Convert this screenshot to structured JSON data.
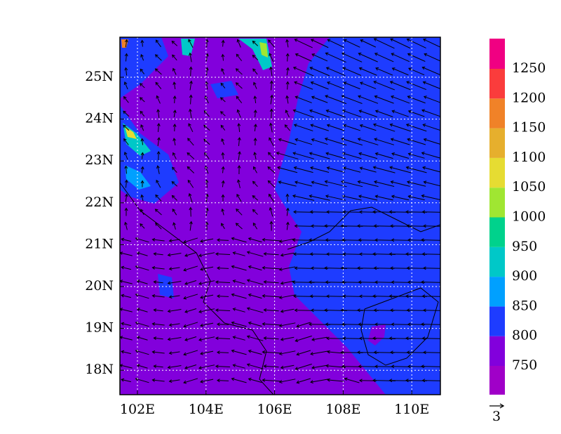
{
  "map": {
    "x_ticks": [
      "102E",
      "104E",
      "106E",
      "108E",
      "110E"
    ],
    "y_ticks": [
      "25N",
      "24N",
      "23N",
      "22N",
      "21N",
      "20N",
      "19N",
      "18N"
    ],
    "colorbar": {
      "levels": [
        750,
        800,
        850,
        900,
        950,
        1000,
        1050,
        1100,
        1150,
        1200,
        1250
      ],
      "colors": [
        "#a000c8",
        "#8200dc",
        "#1e3cff",
        "#00a0ff",
        "#00c8c8",
        "#00d28c",
        "#a0e632",
        "#e6dc32",
        "#e6af2d",
        "#f08228",
        "#fa3c3c",
        "#f00082"
      ]
    },
    "reference_vector": "3"
  }
}
